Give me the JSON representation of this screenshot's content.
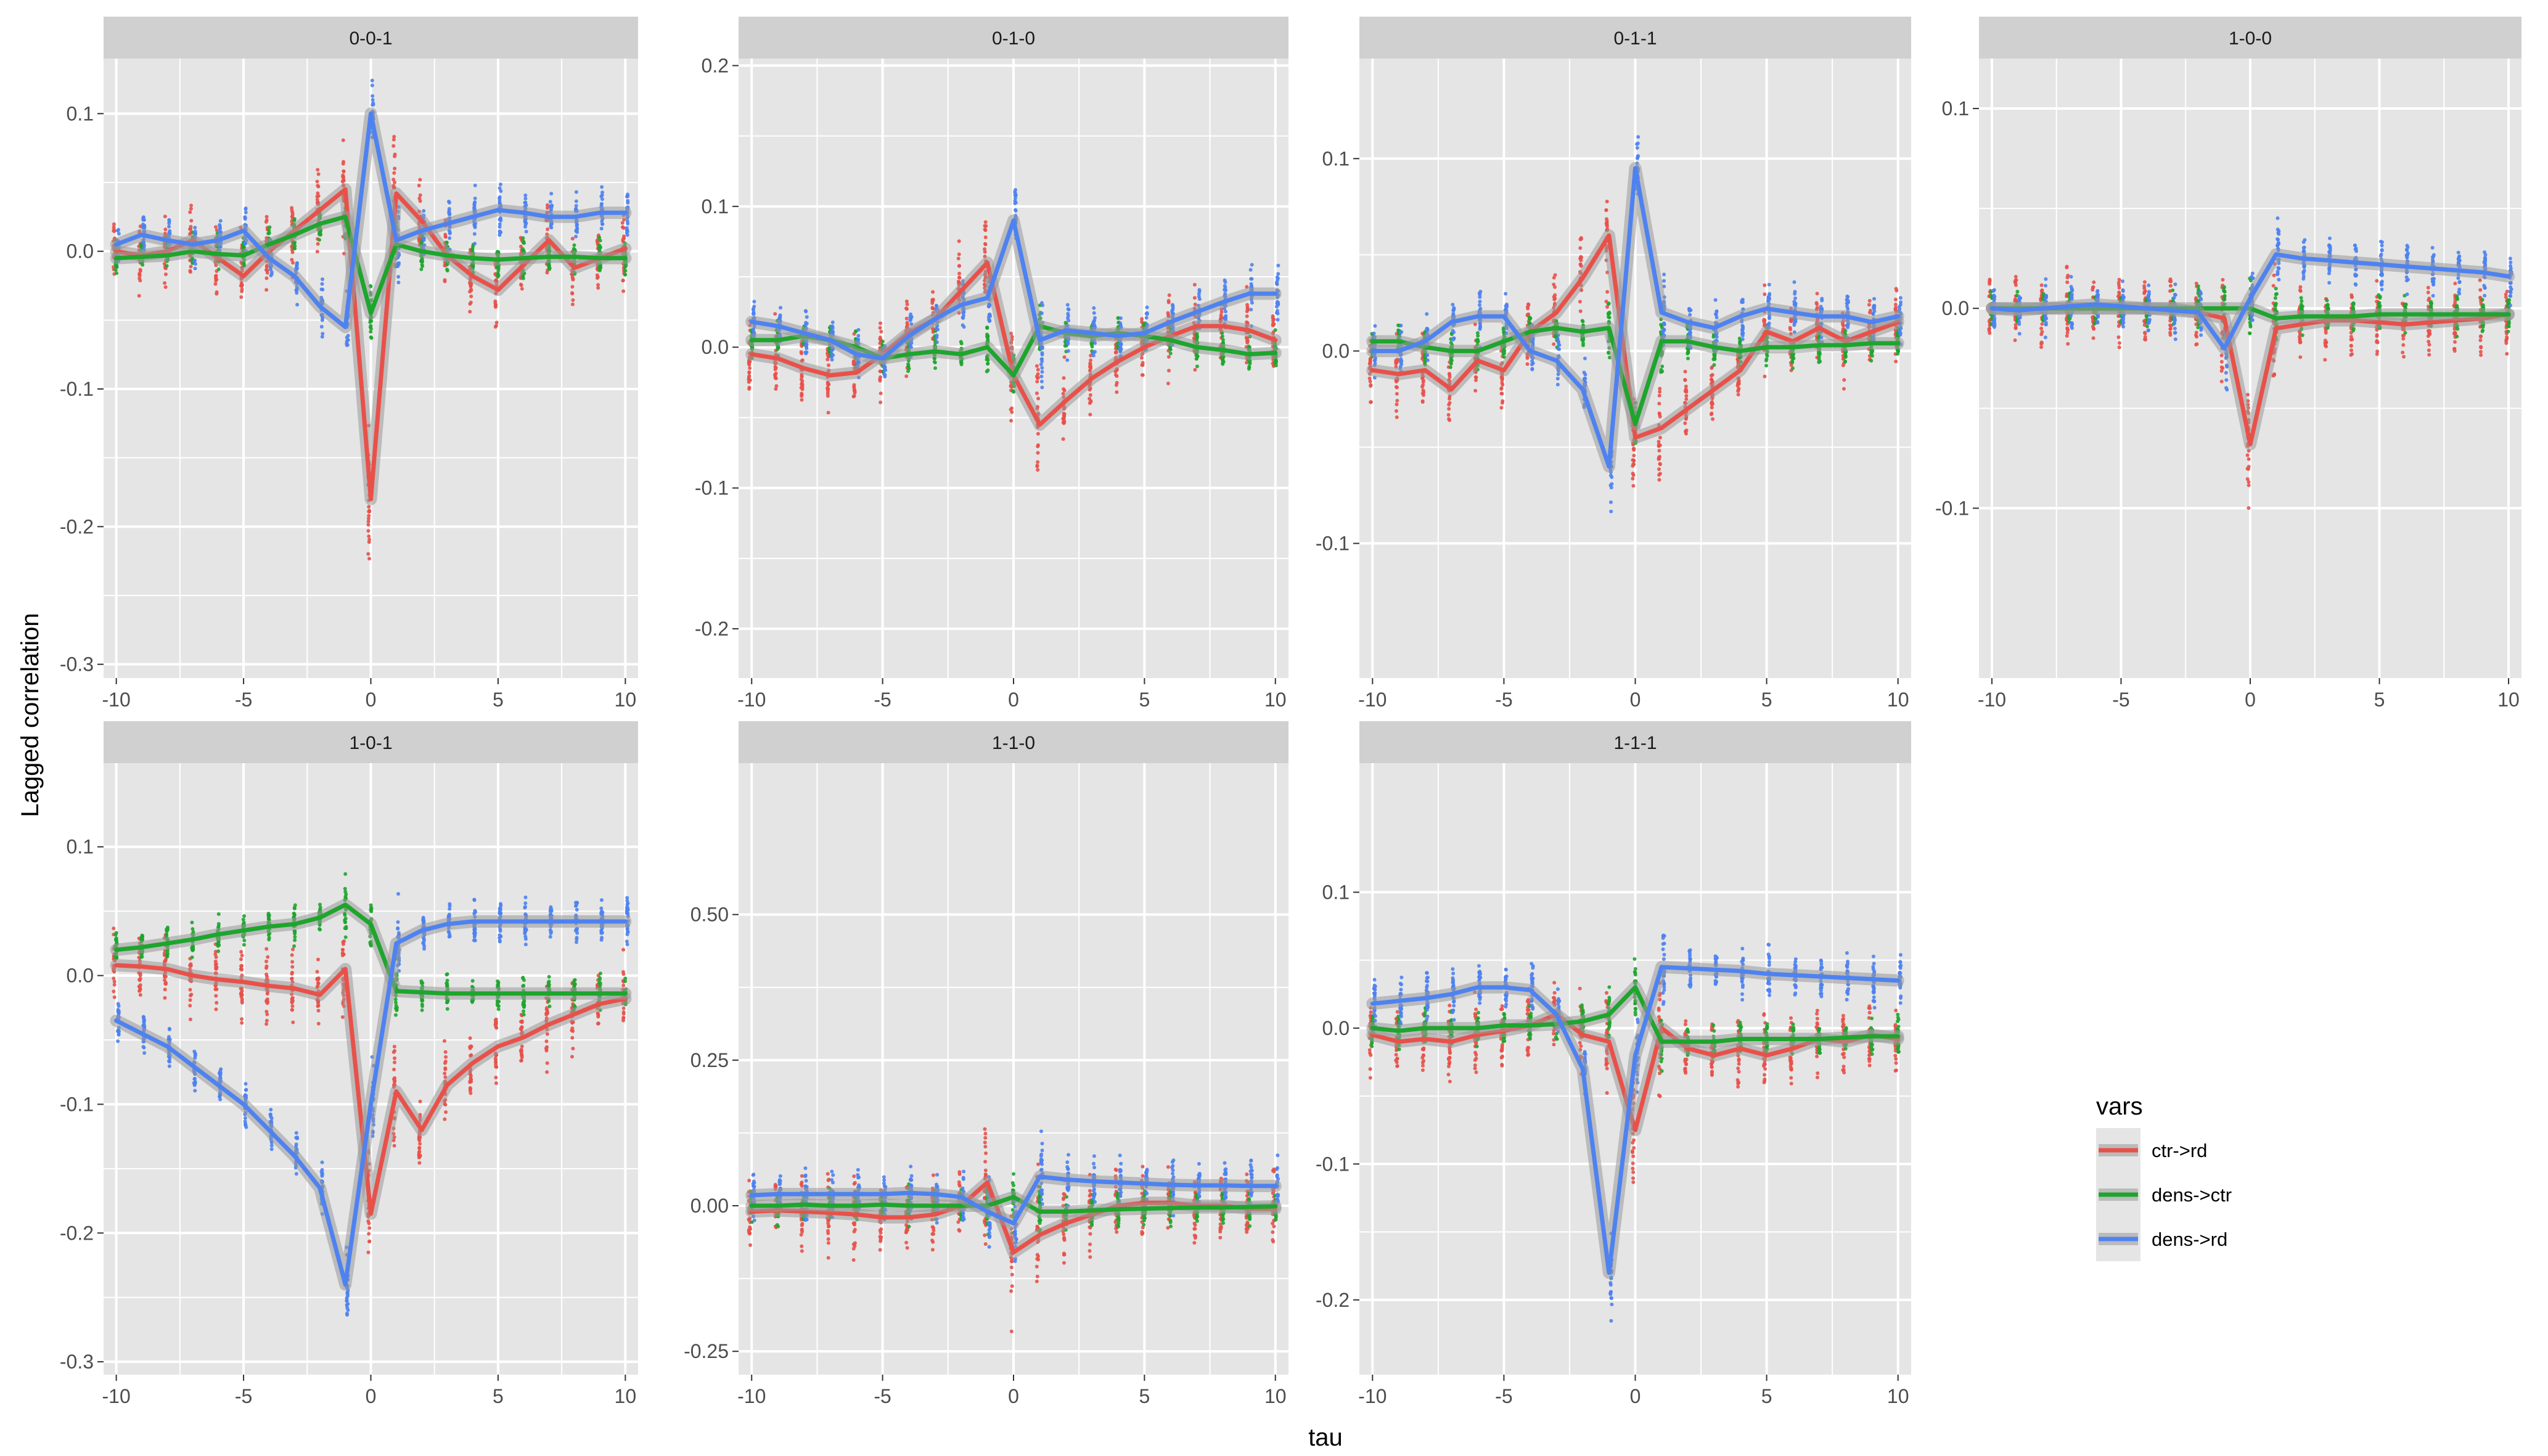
{
  "figure": {
    "xlabel": "tau",
    "ylabel": "Lagged correlation",
    "legend_title": "vars",
    "legend_position": "right",
    "colors": {
      "ctr->rd": "#E8514A",
      "dens->ctr": "#1EA52D",
      "dens->rd": "#4E82F0",
      "panel_bg": "#E5E5E5",
      "strip_bg": "#D0D0D0",
      "grid": "#FFFFFF"
    }
  },
  "chart_data": [
    {
      "type": "line",
      "title": "0-0-1",
      "x": [
        -10,
        -9,
        -8,
        -7,
        -6,
        -5,
        -4,
        -3,
        -2,
        -1,
        0,
        1,
        2,
        3,
        4,
        5,
        6,
        7,
        8,
        9,
        10
      ],
      "xlim": [
        -10.5,
        10.5
      ],
      "ylim": [
        -0.31,
        0.14
      ],
      "xticks": [
        -10,
        -5,
        0,
        5,
        10
      ],
      "yticks": [
        0.1,
        0.0,
        -0.1,
        -0.2,
        -0.3
      ],
      "ytick_labels": [
        "0.1",
        "0.0",
        "-0.1",
        "-0.2",
        "-0.3"
      ],
      "grid": true,
      "series": [
        {
          "name": "ctr->rd",
          "values": [
            0.0,
            -0.003,
            0.0,
            0.008,
            -0.005,
            -0.018,
            0.0,
            0.015,
            0.03,
            0.045,
            -0.18,
            0.042,
            0.022,
            -0.003,
            -0.018,
            -0.028,
            -0.01,
            0.008,
            -0.012,
            -0.005,
            0.002
          ]
        },
        {
          "name": "dens->ctr",
          "values": [
            -0.005,
            -0.004,
            -0.003,
            0.0,
            -0.002,
            -0.003,
            0.005,
            0.012,
            0.02,
            0.025,
            -0.045,
            0.005,
            0.0,
            -0.003,
            -0.005,
            -0.006,
            -0.005,
            -0.004,
            -0.004,
            -0.005,
            -0.005
          ]
        },
        {
          "name": "dens->rd",
          "values": [
            0.005,
            0.012,
            0.008,
            0.005,
            0.008,
            0.015,
            -0.005,
            -0.018,
            -0.04,
            -0.055,
            0.1,
            0.008,
            0.015,
            0.02,
            0.025,
            0.03,
            0.028,
            0.025,
            0.025,
            0.028,
            0.028
          ]
        }
      ]
    },
    {
      "type": "line",
      "title": "0-1-0",
      "x": [
        -10,
        -9,
        -8,
        -7,
        -6,
        -5,
        -4,
        -3,
        -2,
        -1,
        0,
        1,
        2,
        3,
        4,
        5,
        6,
        7,
        8,
        9,
        10
      ],
      "xlim": [
        -10.5,
        10.5
      ],
      "ylim": [
        -0.235,
        0.205
      ],
      "xticks": [
        -10,
        -5,
        0,
        5,
        10
      ],
      "yticks": [
        0.2,
        0.1,
        0.0,
        -0.1,
        -0.2
      ],
      "ytick_labels": [
        "0.2",
        "0.1",
        "0.0",
        "-0.1",
        "-0.2"
      ],
      "grid": true,
      "series": [
        {
          "name": "ctr->rd",
          "values": [
            -0.005,
            -0.008,
            -0.015,
            -0.02,
            -0.018,
            -0.005,
            0.01,
            0.02,
            0.04,
            0.06,
            -0.02,
            -0.055,
            -0.038,
            -0.022,
            -0.01,
            0.0,
            0.008,
            0.015,
            0.015,
            0.012,
            0.005
          ]
        },
        {
          "name": "dens->ctr",
          "values": [
            0.005,
            0.005,
            0.008,
            0.005,
            0.0,
            -0.008,
            -0.005,
            -0.003,
            -0.005,
            0.0,
            -0.02,
            0.015,
            0.01,
            0.008,
            0.01,
            0.008,
            0.005,
            0.0,
            -0.002,
            -0.005,
            -0.004
          ]
        },
        {
          "name": "dens->rd",
          "values": [
            0.018,
            0.015,
            0.01,
            0.005,
            -0.005,
            -0.008,
            0.008,
            0.02,
            0.03,
            0.035,
            0.09,
            0.005,
            0.012,
            0.01,
            0.008,
            0.01,
            0.018,
            0.025,
            0.032,
            0.038,
            0.038
          ]
        }
      ]
    },
    {
      "type": "line",
      "title": "0-1-1",
      "x": [
        -10,
        -9,
        -8,
        -7,
        -6,
        -5,
        -4,
        -3,
        -2,
        -1,
        0,
        1,
        2,
        3,
        4,
        5,
        6,
        7,
        8,
        9,
        10
      ],
      "xlim": [
        -10.5,
        10.5
      ],
      "ylim": [
        -0.17,
        0.152
      ],
      "xticks": [
        -10,
        -5,
        0,
        5,
        10
      ],
      "yticks": [
        0.1,
        0.0,
        -0.1
      ],
      "ytick_labels": [
        "0.1",
        "0.0",
        "-0.1"
      ],
      "grid": true,
      "series": [
        {
          "name": "ctr->rd",
          "values": [
            -0.01,
            -0.012,
            -0.01,
            -0.02,
            -0.005,
            -0.01,
            0.01,
            0.02,
            0.038,
            0.06,
            -0.045,
            -0.04,
            -0.03,
            -0.02,
            -0.01,
            0.01,
            0.005,
            0.012,
            0.005,
            0.01,
            0.015
          ]
        },
        {
          "name": "dens->ctr",
          "values": [
            0.005,
            0.005,
            0.002,
            0.0,
            0.0,
            0.005,
            0.01,
            0.012,
            0.01,
            0.012,
            -0.038,
            0.005,
            0.005,
            0.002,
            0.0,
            0.002,
            0.002,
            0.003,
            0.003,
            0.004,
            0.004
          ]
        },
        {
          "name": "dens->rd",
          "values": [
            0.0,
            0.0,
            0.005,
            0.015,
            0.018,
            0.018,
            0.0,
            -0.005,
            -0.02,
            -0.06,
            0.095,
            0.02,
            0.015,
            0.012,
            0.018,
            0.022,
            0.02,
            0.018,
            0.018,
            0.015,
            0.018
          ]
        }
      ]
    },
    {
      "type": "line",
      "title": "1-0-0",
      "x": [
        -10,
        -9,
        -8,
        -7,
        -6,
        -5,
        -4,
        -3,
        -2,
        -1,
        0,
        1,
        2,
        3,
        4,
        5,
        6,
        7,
        8,
        9,
        10
      ],
      "xlim": [
        -10.5,
        10.5
      ],
      "ylim": [
        -0.185,
        0.125
      ],
      "xticks": [
        -10,
        -5,
        0,
        5,
        10
      ],
      "yticks": [
        0.1,
        0.0,
        -0.1
      ],
      "ytick_labels": [
        "0.1",
        "0.0",
        "-0.1"
      ],
      "grid": true,
      "series": [
        {
          "name": "ctr->rd",
          "values": [
            0.0,
            0.0,
            0.0,
            0.0,
            0.0,
            0.0,
            0.0,
            0.0,
            -0.002,
            -0.005,
            -0.068,
            -0.01,
            -0.008,
            -0.006,
            -0.006,
            -0.007,
            -0.008,
            -0.007,
            -0.006,
            -0.005,
            -0.003
          ]
        },
        {
          "name": "dens->ctr",
          "values": [
            0.0,
            0.0,
            0.0,
            0.0,
            0.0,
            0.0,
            0.0,
            0.0,
            0.0,
            0.0,
            0.0,
            -0.005,
            -0.004,
            -0.004,
            -0.004,
            -0.003,
            -0.003,
            -0.003,
            -0.003,
            -0.003,
            -0.003
          ]
        },
        {
          "name": "dens->rd",
          "values": [
            0.0,
            -0.001,
            0.0,
            0.001,
            0.002,
            0.001,
            0.0,
            -0.001,
            -0.002,
            -0.02,
            0.005,
            0.027,
            0.025,
            0.024,
            0.023,
            0.022,
            0.021,
            0.02,
            0.019,
            0.018,
            0.016
          ]
        }
      ]
    },
    {
      "type": "line",
      "title": "1-0-1",
      "x": [
        -10,
        -9,
        -8,
        -7,
        -6,
        -5,
        -4,
        -3,
        -2,
        -1,
        0,
        1,
        2,
        3,
        4,
        5,
        6,
        7,
        8,
        9,
        10
      ],
      "xlim": [
        -10.5,
        10.5
      ],
      "ylim": [
        -0.31,
        0.165
      ],
      "xticks": [
        -10,
        -5,
        0,
        5,
        10
      ],
      "yticks": [
        0.1,
        0.0,
        -0.1,
        -0.2,
        -0.3
      ],
      "ytick_labels": [
        "0.1",
        "0.0",
        "-0.1",
        "-0.2",
        "-0.3"
      ],
      "grid": true,
      "series": [
        {
          "name": "ctr->rd",
          "values": [
            0.008,
            0.007,
            0.005,
            0.0,
            -0.003,
            -0.005,
            -0.008,
            -0.01,
            -0.015,
            0.005,
            -0.185,
            -0.09,
            -0.12,
            -0.085,
            -0.068,
            -0.055,
            -0.048,
            -0.038,
            -0.03,
            -0.022,
            -0.018
          ]
        },
        {
          "name": "dens->ctr",
          "values": [
            0.02,
            0.022,
            0.025,
            0.028,
            0.032,
            0.035,
            0.038,
            0.04,
            0.045,
            0.055,
            0.04,
            -0.012,
            -0.013,
            -0.014,
            -0.014,
            -0.014,
            -0.014,
            -0.014,
            -0.014,
            -0.014,
            -0.014
          ]
        },
        {
          "name": "dens->rd",
          "values": [
            -0.035,
            -0.045,
            -0.055,
            -0.07,
            -0.085,
            -0.1,
            -0.12,
            -0.14,
            -0.165,
            -0.24,
            -0.1,
            0.025,
            0.035,
            0.04,
            0.042,
            0.042,
            0.042,
            0.042,
            0.042,
            0.042,
            0.042
          ]
        }
      ]
    },
    {
      "type": "line",
      "title": "1-1-0",
      "x": [
        -10,
        -9,
        -8,
        -7,
        -6,
        -5,
        -4,
        -3,
        -2,
        -1,
        0,
        1,
        2,
        3,
        4,
        5,
        6,
        7,
        8,
        9,
        10
      ],
      "xlim": [
        -10.5,
        10.5
      ],
      "ylim": [
        -0.29,
        0.76
      ],
      "xticks": [
        -10,
        -5,
        0,
        5,
        10
      ],
      "yticks": [
        0.5,
        0.25,
        0.0,
        -0.25
      ],
      "ytick_labels": [
        "0.50",
        "0.25",
        "0.00",
        "-0.25"
      ],
      "grid": true,
      "series": [
        {
          "name": "ctr->rd",
          "values": [
            -0.01,
            -0.008,
            -0.01,
            -0.012,
            -0.015,
            -0.02,
            -0.02,
            -0.015,
            0.0,
            0.04,
            -0.08,
            -0.05,
            -0.03,
            -0.015,
            0.0,
            0.005,
            0.005,
            0.0,
            0.0,
            -0.005,
            -0.005
          ]
        },
        {
          "name": "dens->ctr",
          "values": [
            0.0,
            0.0,
            0.002,
            0.0,
            0.0,
            0.002,
            0.0,
            0.0,
            0.0,
            0.0,
            0.015,
            -0.01,
            -0.01,
            -0.008,
            -0.006,
            -0.005,
            -0.004,
            -0.003,
            -0.003,
            -0.002,
            -0.001
          ]
        },
        {
          "name": "dens->rd",
          "values": [
            0.018,
            0.02,
            0.02,
            0.02,
            0.02,
            0.02,
            0.022,
            0.02,
            0.015,
            -0.01,
            -0.03,
            0.05,
            0.045,
            0.042,
            0.04,
            0.038,
            0.036,
            0.035,
            0.035,
            0.034,
            0.034
          ]
        }
      ]
    },
    {
      "type": "line",
      "title": "1-1-1",
      "x": [
        -10,
        -9,
        -8,
        -7,
        -6,
        -5,
        -4,
        -3,
        -2,
        -1,
        0,
        1,
        2,
        3,
        4,
        5,
        6,
        7,
        8,
        9,
        10
      ],
      "xlim": [
        -10.5,
        10.5
      ],
      "ylim": [
        -0.255,
        0.195
      ],
      "xticks": [
        -10,
        -5,
        0,
        5,
        10
      ],
      "yticks": [
        0.1,
        0.0,
        -0.1,
        -0.2
      ],
      "ytick_labels": [
        "0.1",
        "0.0",
        "-0.1",
        "-0.2"
      ],
      "grid": true,
      "series": [
        {
          "name": "ctr->rd",
          "values": [
            -0.005,
            -0.01,
            -0.008,
            -0.01,
            -0.005,
            -0.002,
            0.002,
            0.01,
            -0.005,
            -0.01,
            -0.075,
            0.0,
            -0.015,
            -0.02,
            -0.015,
            -0.02,
            -0.015,
            -0.008,
            -0.01,
            -0.005,
            -0.008
          ]
        },
        {
          "name": "dens->ctr",
          "values": [
            0.0,
            -0.002,
            0.0,
            0.0,
            0.0,
            0.002,
            0.002,
            0.003,
            0.005,
            0.01,
            0.03,
            -0.01,
            -0.01,
            -0.01,
            -0.008,
            -0.008,
            -0.008,
            -0.008,
            -0.007,
            -0.006,
            -0.006
          ]
        },
        {
          "name": "dens->rd",
          "values": [
            0.018,
            0.02,
            0.022,
            0.025,
            0.03,
            0.03,
            0.028,
            0.01,
            -0.03,
            -0.18,
            -0.02,
            0.045,
            0.044,
            0.043,
            0.042,
            0.04,
            0.039,
            0.038,
            0.037,
            0.036,
            0.035
          ]
        }
      ]
    }
  ]
}
